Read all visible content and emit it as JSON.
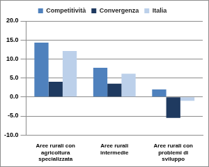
{
  "chart_data": {
    "type": "bar",
    "categories": [
      "Aree rurali con agricoltura specializzata",
      "Aree rurali intermedie",
      "Aree rurali con problemi di sviluppo"
    ],
    "series": [
      {
        "name": "Competitività",
        "color": "#4f81bd",
        "values": [
          14.3,
          7.7,
          2.0
        ]
      },
      {
        "name": "Convergenza",
        "color": "#1f3a60",
        "values": [
          4.0,
          3.5,
          -5.5
        ]
      },
      {
        "name": "Italia",
        "color": "#bcd0ea",
        "values": [
          12.1,
          6.1,
          -1.0
        ]
      }
    ],
    "ylim": [
      -10,
      20
    ],
    "yticks": [
      {
        "value": -10,
        "label": "-10.0"
      },
      {
        "value": -5,
        "label": "-5.0"
      },
      {
        "value": 0,
        "label": "0.0"
      },
      {
        "value": 5,
        "label": "5.0"
      },
      {
        "value": 10,
        "label": "10.0"
      },
      {
        "value": 15,
        "label": "15.0"
      },
      {
        "value": 20,
        "label": "20.0"
      }
    ],
    "grid": true,
    "legend": "top"
  }
}
